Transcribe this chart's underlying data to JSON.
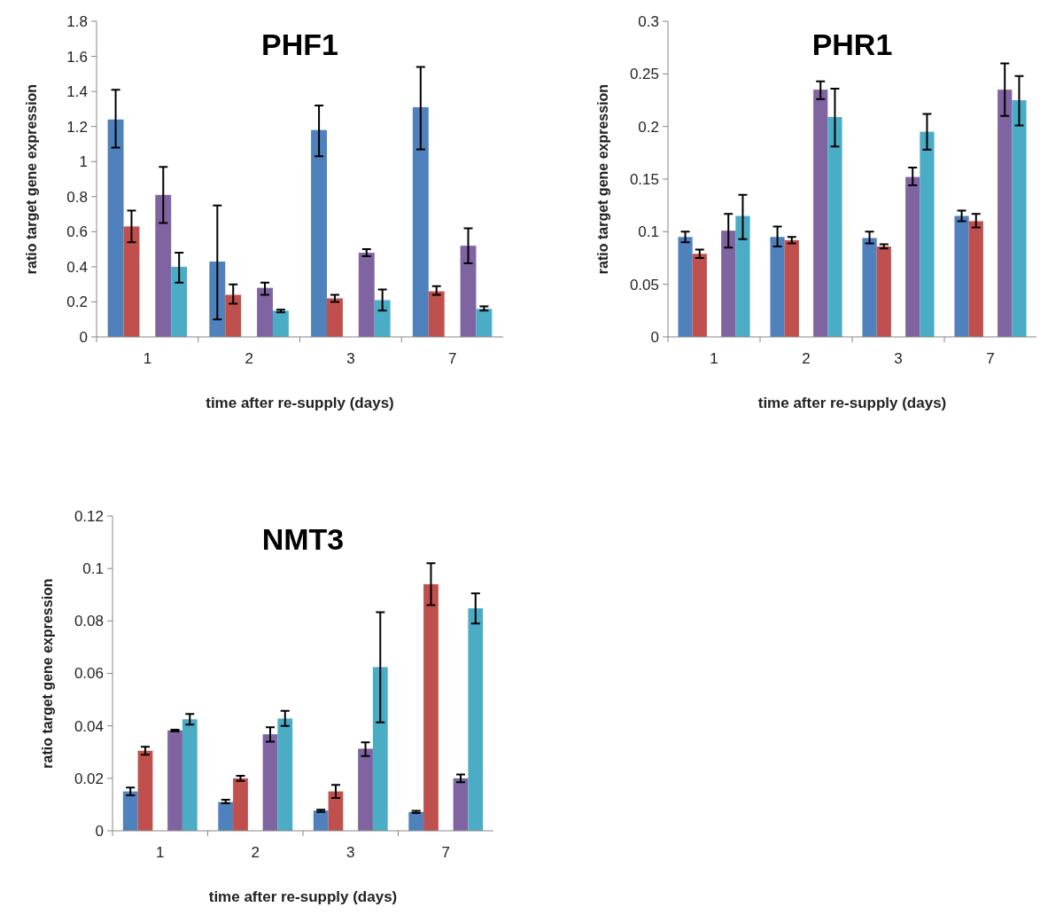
{
  "chart_data": [
    {
      "type": "bar",
      "title": "PHF1",
      "xlabel": "time after re-supply (days)",
      "ylabel": "ratio target gene expression",
      "categories": [
        "1",
        "2",
        "3",
        "7"
      ],
      "ylim": [
        0,
        1.8
      ],
      "yticks": [
        0,
        0.2,
        0.4,
        0.6,
        0.8,
        1,
        1.2,
        1.4,
        1.6,
        1.8
      ],
      "grid": false,
      "series": [
        {
          "color": "#4f81bd",
          "values": [
            1.24,
            0.43,
            1.18,
            1.31
          ],
          "errors": [
            [
              1.08,
              1.41
            ],
            [
              0.1,
              0.75
            ],
            [
              1.03,
              1.32
            ],
            [
              1.07,
              1.54
            ]
          ]
        },
        {
          "color": "#c0504d",
          "values": [
            0.63,
            0.24,
            0.22,
            0.26
          ],
          "errors": [
            [
              0.54,
              0.72
            ],
            [
              0.19,
              0.3
            ],
            [
              0.2,
              0.24
            ],
            [
              0.24,
              0.29
            ]
          ]
        },
        {
          "color": "#8064a2",
          "values": [
            0.81,
            0.28,
            0.48,
            0.52
          ],
          "errors": [
            [
              0.65,
              0.97
            ],
            [
              0.24,
              0.31
            ],
            [
              0.46,
              0.5
            ],
            [
              0.42,
              0.62
            ]
          ]
        },
        {
          "color": "#4bacc6",
          "values": [
            0.4,
            0.15,
            0.21,
            0.16
          ],
          "errors": [
            [
              0.31,
              0.48
            ],
            [
              0.14,
              0.155
            ],
            [
              0.15,
              0.27
            ],
            [
              0.15,
              0.175
            ]
          ]
        }
      ]
    },
    {
      "type": "bar",
      "title": "PHR1",
      "xlabel": "time after re-supply (days)",
      "ylabel": "ratio target gene expression",
      "categories": [
        "1",
        "2",
        "3",
        "7"
      ],
      "ylim": [
        0,
        0.3
      ],
      "yticks": [
        0,
        0.05,
        0.1,
        0.15,
        0.2,
        0.25,
        0.3
      ],
      "grid": false,
      "series": [
        {
          "color": "#4f81bd",
          "values": [
            0.095,
            0.095,
            0.094,
            0.115
          ],
          "errors": [
            [
              0.09,
              0.1
            ],
            [
              0.086,
              0.105
            ],
            [
              0.089,
              0.1
            ],
            [
              0.11,
              0.12
            ]
          ]
        },
        {
          "color": "#c0504d",
          "values": [
            0.079,
            0.092,
            0.086,
            0.11
          ],
          "errors": [
            [
              0.075,
              0.083
            ],
            [
              0.089,
              0.095
            ],
            [
              0.084,
              0.088
            ],
            [
              0.104,
              0.117
            ]
          ]
        },
        {
          "color": "#8064a2",
          "values": [
            0.101,
            0.235,
            0.152,
            0.235
          ],
          "errors": [
            [
              0.085,
              0.117
            ],
            [
              0.226,
              0.243
            ],
            [
              0.144,
              0.161
            ],
            [
              0.21,
              0.26
            ]
          ]
        },
        {
          "color": "#4bacc6",
          "values": [
            0.115,
            0.209,
            0.195,
            0.225
          ],
          "errors": [
            [
              0.093,
              0.135
            ],
            [
              0.181,
              0.236
            ],
            [
              0.178,
              0.212
            ],
            [
              0.201,
              0.248
            ]
          ]
        }
      ]
    },
    {
      "type": "bar",
      "title": "NMT3",
      "xlabel": "time after re-supply (days)",
      "ylabel": "ratio target gene expression",
      "categories": [
        "1",
        "2",
        "3",
        "7"
      ],
      "ylim": [
        0,
        0.12
      ],
      "yticks": [
        0,
        0.02,
        0.04,
        0.06,
        0.08,
        0.1,
        0.12
      ],
      "grid": false,
      "series": [
        {
          "color": "#4f81bd",
          "values": [
            0.015,
            0.011,
            0.0077,
            0.0072
          ],
          "errors": [
            [
              0.0135,
              0.0165
            ],
            [
              0.0105,
              0.0118
            ],
            [
              0.0072,
              0.008
            ],
            [
              0.0068,
              0.0076
            ]
          ]
        },
        {
          "color": "#c0504d",
          "values": [
            0.0305,
            0.02,
            0.015,
            0.094
          ],
          "errors": [
            [
              0.029,
              0.032
            ],
            [
              0.019,
              0.021
            ],
            [
              0.0125,
              0.0175
            ],
            [
              0.086,
              0.102
            ]
          ]
        },
        {
          "color": "#8064a2",
          "values": [
            0.0383,
            0.0368,
            0.0313,
            0.02
          ],
          "errors": [
            [
              0.0379,
              0.0385
            ],
            [
              0.034,
              0.0395
            ],
            [
              0.0285,
              0.0337
            ],
            [
              0.0185,
              0.0215
            ]
          ]
        },
        {
          "color": "#4bacc6",
          "values": [
            0.0425,
            0.0428,
            0.0624,
            0.0848
          ],
          "errors": [
            [
              0.0405,
              0.0445
            ],
            [
              0.04,
              0.0457
            ],
            [
              0.0413,
              0.0833
            ],
            [
              0.079,
              0.0905
            ]
          ]
        }
      ]
    }
  ]
}
